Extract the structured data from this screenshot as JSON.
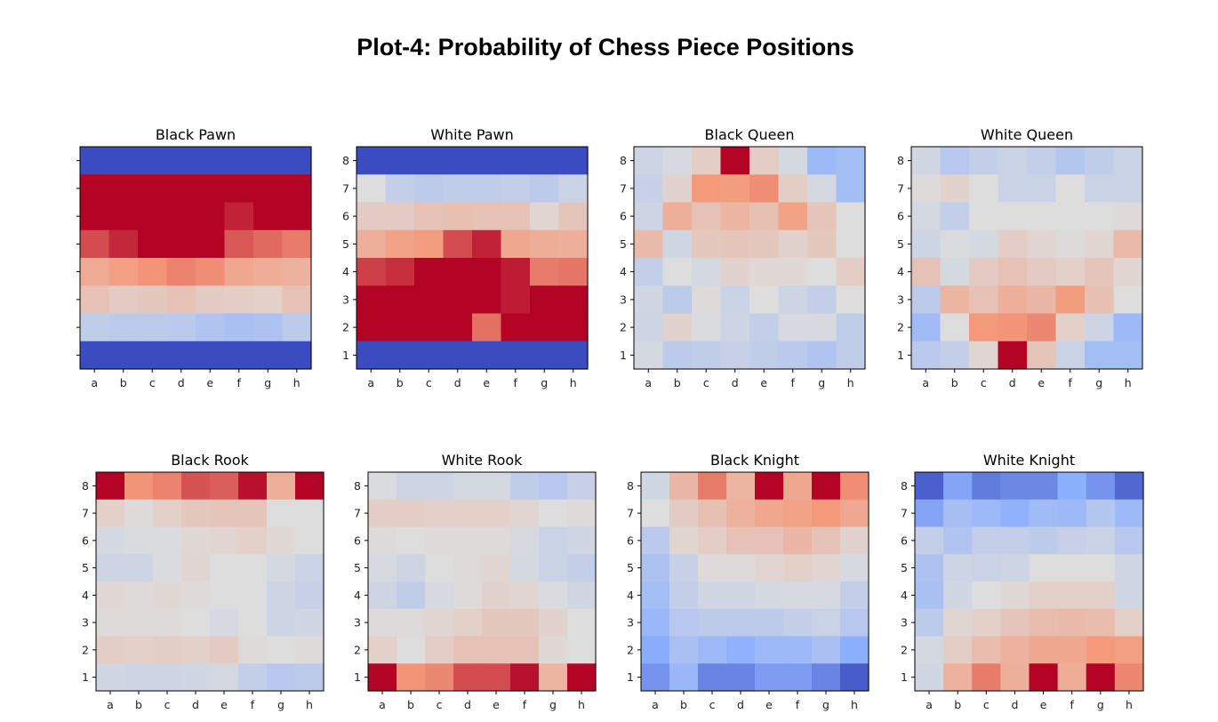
{
  "title": "Plot-4: Probability of Chess Piece Positions",
  "colormap": "coolwarm",
  "chart_data": [
    {
      "type": "heatmap",
      "title": "Black Pawn",
      "xticks": [
        "a",
        "b",
        "c",
        "d",
        "e",
        "f",
        "g",
        "h"
      ],
      "yticks": [],
      "rows": [
        [
          0,
          0,
          0,
          0,
          0,
          0,
          0,
          0
        ],
        [
          1,
          1,
          1,
          1,
          1,
          1,
          1,
          1
        ],
        [
          1,
          1,
          1,
          1,
          1,
          0.95,
          1,
          1
        ],
        [
          0.88,
          0.94,
          1,
          1,
          1,
          0.86,
          0.83,
          0.8
        ],
        [
          0.69,
          0.73,
          0.76,
          0.79,
          0.77,
          0.7,
          0.68,
          0.66
        ],
        [
          0.6,
          0.57,
          0.58,
          0.6,
          0.57,
          0.56,
          0.55,
          0.6
        ],
        [
          0.41,
          0.4,
          0.4,
          0.39,
          0.36,
          0.34,
          0.35,
          0.4
        ],
        [
          0,
          0,
          0,
          0,
          0,
          0,
          0,
          0
        ]
      ]
    },
    {
      "type": "heatmap",
      "title": "White Pawn",
      "xticks": [
        "a",
        "b",
        "c",
        "d",
        "e",
        "f",
        "g",
        "h"
      ],
      "yticks": [
        "8",
        "7",
        "6",
        "5",
        "4",
        "3",
        "2",
        "1"
      ],
      "rows": [
        [
          0,
          0,
          0,
          0,
          0,
          0,
          0,
          0
        ],
        [
          0.5,
          0.42,
          0.4,
          0.41,
          0.41,
          0.42,
          0.4,
          0.44
        ],
        [
          0.57,
          0.57,
          0.6,
          0.61,
          0.6,
          0.6,
          0.53,
          0.59
        ],
        [
          0.67,
          0.72,
          0.74,
          0.88,
          0.95,
          0.7,
          0.68,
          0.67
        ],
        [
          0.9,
          0.93,
          1,
          1,
          1,
          0.96,
          0.8,
          0.81
        ],
        [
          1,
          1,
          1,
          1,
          1,
          0.96,
          1,
          1
        ],
        [
          1,
          1,
          1,
          1,
          0.82,
          1,
          1,
          1
        ],
        [
          0,
          0,
          0,
          0,
          0,
          0,
          0,
          0
        ]
      ]
    },
    {
      "type": "heatmap",
      "title": "Black Queen",
      "xticks": [
        "a",
        "b",
        "c",
        "d",
        "e",
        "f",
        "g",
        "h"
      ],
      "yticks": [
        "8",
        "7",
        "6",
        "5",
        "4",
        "3",
        "2",
        "1"
      ],
      "rows": [
        [
          0.45,
          0.48,
          0.56,
          1,
          0.56,
          0.47,
          0.3,
          0.32
        ],
        [
          0.43,
          0.54,
          0.75,
          0.74,
          0.77,
          0.56,
          0.47,
          0.32
        ],
        [
          0.45,
          0.67,
          0.6,
          0.65,
          0.61,
          0.72,
          0.59,
          0.5
        ],
        [
          0.63,
          0.46,
          0.58,
          0.59,
          0.58,
          0.54,
          0.58,
          0.5
        ],
        [
          0.42,
          0.5,
          0.47,
          0.54,
          0.52,
          0.52,
          0.5,
          0.56
        ],
        [
          0.46,
          0.4,
          0.51,
          0.44,
          0.5,
          0.45,
          0.42,
          0.5
        ],
        [
          0.45,
          0.54,
          0.49,
          0.45,
          0.42,
          0.48,
          0.48,
          0.41
        ],
        [
          0.47,
          0.4,
          0.41,
          0.43,
          0.41,
          0.39,
          0.36,
          0.41
        ]
      ]
    },
    {
      "type": "heatmap",
      "title": "White Queen",
      "xticks": [
        "a",
        "b",
        "c",
        "d",
        "e",
        "f",
        "g",
        "h"
      ],
      "yticks": [
        "8",
        "7",
        "6",
        "5",
        "4",
        "3",
        "2",
        "1"
      ],
      "rows": [
        [
          0.46,
          0.38,
          0.42,
          0.44,
          0.42,
          0.37,
          0.41,
          0.44
        ],
        [
          0.51,
          0.54,
          0.5,
          0.44,
          0.44,
          0.5,
          0.44,
          0.44
        ],
        [
          0.47,
          0.42,
          0.5,
          0.5,
          0.5,
          0.5,
          0.5,
          0.51
        ],
        [
          0.45,
          0.49,
          0.47,
          0.56,
          0.53,
          0.51,
          0.53,
          0.63
        ],
        [
          0.6,
          0.47,
          0.57,
          0.6,
          0.57,
          0.55,
          0.59,
          0.53
        ],
        [
          0.4,
          0.65,
          0.6,
          0.67,
          0.64,
          0.74,
          0.61,
          0.5
        ],
        [
          0.31,
          0.5,
          0.75,
          0.76,
          0.78,
          0.55,
          0.45,
          0.3
        ],
        [
          0.39,
          0.42,
          0.53,
          1,
          0.59,
          0.44,
          0.32,
          0.32
        ]
      ]
    },
    {
      "type": "heatmap",
      "title": "Black Rook",
      "xticks": [
        "a",
        "b",
        "c",
        "d",
        "e",
        "f",
        "g",
        "h"
      ],
      "yticks": [
        "8",
        "7",
        "6",
        "5",
        "4",
        "3",
        "2",
        "1"
      ],
      "rows": [
        [
          1,
          0.76,
          0.79,
          0.87,
          0.85,
          0.98,
          0.67,
          1
        ],
        [
          0.55,
          0.51,
          0.55,
          0.58,
          0.59,
          0.59,
          0.5,
          0.5
        ],
        [
          0.47,
          0.49,
          0.49,
          0.52,
          0.53,
          0.55,
          0.52,
          0.5
        ],
        [
          0.45,
          0.45,
          0.49,
          0.53,
          0.5,
          0.5,
          0.47,
          0.44
        ],
        [
          0.52,
          0.51,
          0.52,
          0.51,
          0.5,
          0.5,
          0.45,
          0.43
        ],
        [
          0.51,
          0.51,
          0.51,
          0.5,
          0.48,
          0.5,
          0.45,
          0.46
        ],
        [
          0.56,
          0.55,
          0.56,
          0.55,
          0.57,
          0.51,
          0.5,
          0.51
        ],
        [
          0.46,
          0.45,
          0.45,
          0.46,
          0.47,
          0.42,
          0.38,
          0.4
        ]
      ]
    },
    {
      "type": "heatmap",
      "title": "White Rook",
      "xticks": [
        "a",
        "b",
        "c",
        "d",
        "e",
        "f",
        "g",
        "h"
      ],
      "yticks": [
        "8",
        "7",
        "6",
        "5",
        "4",
        "3",
        "2",
        "1"
      ],
      "rows": [
        [
          0.49,
          0.45,
          0.45,
          0.47,
          0.47,
          0.41,
          0.38,
          0.43
        ],
        [
          0.56,
          0.56,
          0.55,
          0.55,
          0.55,
          0.53,
          0.5,
          0.51
        ],
        [
          0.51,
          0.5,
          0.51,
          0.51,
          0.51,
          0.48,
          0.44,
          0.46
        ],
        [
          0.48,
          0.45,
          0.5,
          0.51,
          0.53,
          0.47,
          0.44,
          0.42
        ],
        [
          0.45,
          0.41,
          0.48,
          0.51,
          0.54,
          0.53,
          0.49,
          0.46
        ],
        [
          0.51,
          0.51,
          0.53,
          0.55,
          0.58,
          0.58,
          0.54,
          0.5
        ],
        [
          0.55,
          0.5,
          0.56,
          0.6,
          0.6,
          0.6,
          0.52,
          0.5
        ],
        [
          1,
          0.76,
          0.78,
          0.88,
          0.88,
          0.98,
          0.65,
          1
        ]
      ]
    },
    {
      "type": "heatmap",
      "title": "Black Knight",
      "xticks": [
        "a",
        "b",
        "c",
        "d",
        "e",
        "f",
        "g",
        "h"
      ],
      "yticks": [
        "8",
        "7",
        "6",
        "5",
        "4",
        "3",
        "2",
        "1"
      ],
      "rows": [
        [
          0.46,
          0.64,
          0.8,
          0.65,
          1,
          0.7,
          1,
          0.77
        ],
        [
          0.5,
          0.57,
          0.61,
          0.66,
          0.7,
          0.72,
          0.75,
          0.7
        ],
        [
          0.39,
          0.53,
          0.56,
          0.6,
          0.6,
          0.64,
          0.6,
          0.54
        ],
        [
          0.35,
          0.43,
          0.51,
          0.51,
          0.53,
          0.55,
          0.53,
          0.48
        ],
        [
          0.32,
          0.42,
          0.46,
          0.46,
          0.47,
          0.48,
          0.48,
          0.42
        ],
        [
          0.29,
          0.38,
          0.4,
          0.4,
          0.4,
          0.42,
          0.44,
          0.38
        ],
        [
          0.24,
          0.34,
          0.3,
          0.26,
          0.3,
          0.3,
          0.34,
          0.25
        ],
        [
          0.18,
          0.29,
          0.14,
          0.14,
          0.2,
          0.2,
          0.14,
          0.04
        ]
      ]
    },
    {
      "type": "heatmap",
      "title": "White Knight",
      "xticks": [
        "a",
        "b",
        "c",
        "d",
        "e",
        "f",
        "g",
        "h"
      ],
      "yticks": [
        "8",
        "7",
        "6",
        "5",
        "4",
        "3",
        "2",
        "1"
      ],
      "rows": [
        [
          0.05,
          0.22,
          0.12,
          0.15,
          0.15,
          0.25,
          0.18,
          0.07
        ],
        [
          0.22,
          0.33,
          0.3,
          0.26,
          0.31,
          0.3,
          0.37,
          0.3
        ],
        [
          0.42,
          0.36,
          0.42,
          0.42,
          0.4,
          0.43,
          0.44,
          0.38
        ],
        [
          0.35,
          0.45,
          0.44,
          0.45,
          0.5,
          0.5,
          0.5,
          0.46
        ],
        [
          0.34,
          0.46,
          0.5,
          0.52,
          0.55,
          0.55,
          0.55,
          0.46
        ],
        [
          0.4,
          0.53,
          0.55,
          0.59,
          0.62,
          0.63,
          0.62,
          0.55
        ],
        [
          0.47,
          0.56,
          0.62,
          0.66,
          0.7,
          0.7,
          0.75,
          0.73
        ],
        [
          0.46,
          0.66,
          0.8,
          0.67,
          1,
          0.68,
          1,
          0.78
        ]
      ]
    }
  ]
}
